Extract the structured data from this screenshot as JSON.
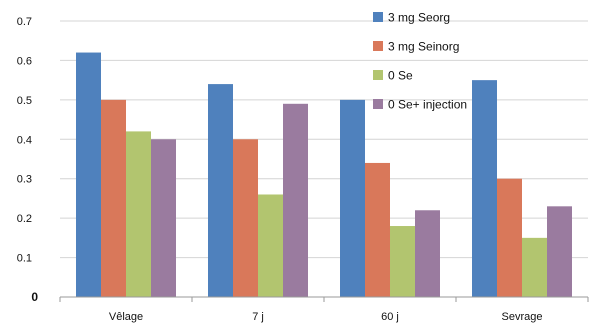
{
  "chart_data": {
    "type": "bar",
    "categories": [
      "Vêlage",
      "7 j",
      "60 j",
      "Sevrage"
    ],
    "series": [
      {
        "name": "3 mg Seorg",
        "color": "#4f81bd",
        "values": [
          0.62,
          0.54,
          0.5,
          0.55
        ]
      },
      {
        "name": "3 mg Seinorg",
        "color": "#d9785a",
        "values": [
          0.5,
          0.4,
          0.34,
          0.3
        ]
      },
      {
        "name": "0 Se",
        "color": "#b2c56f",
        "values": [
          0.42,
          0.26,
          0.18,
          0.15
        ]
      },
      {
        "name": "0 Se+ injection",
        "color": "#9a7b9f",
        "values": [
          0.4,
          0.49,
          0.22,
          0.23
        ]
      }
    ],
    "yticks": [
      "0",
      "0.1",
      "0.2",
      "0.3",
      "0.4",
      "0.5",
      "0.6",
      "0.7"
    ],
    "ylim": [
      0,
      0.7
    ],
    "grid": true,
    "legend_position": "top-right",
    "title": "",
    "xlabel": "",
    "ylabel": ""
  }
}
